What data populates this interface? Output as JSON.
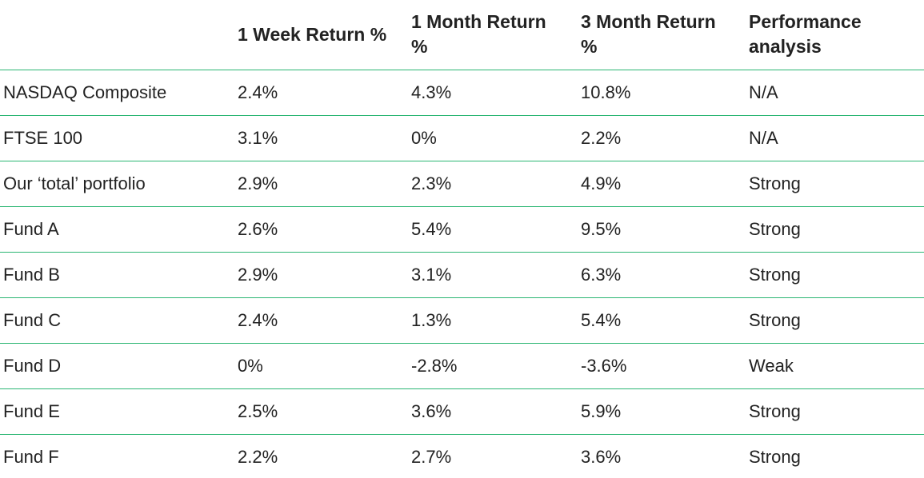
{
  "table": {
    "headers": [
      "",
      "1 Week Return %",
      "1 Month Return %",
      "3 Month Return %",
      "Performance analysis"
    ],
    "rows": [
      [
        "NASDAQ Composite",
        "2.4%",
        "4.3%",
        "10.8%",
        "N/A"
      ],
      [
        "FTSE 100",
        "3.1%",
        "0%",
        "2.2%",
        "N/A"
      ],
      [
        "Our ‘total’ portfolio",
        "2.9%",
        "2.3%",
        "4.9%",
        "Strong"
      ],
      [
        "Fund A",
        "2.6%",
        "5.4%",
        "9.5%",
        "Strong"
      ],
      [
        "Fund B",
        "2.9%",
        "3.1%",
        "6.3%",
        "Strong"
      ],
      [
        "Fund C",
        "2.4%",
        "1.3%",
        "5.4%",
        "Strong"
      ],
      [
        "Fund D",
        "0%",
        "-2.8%",
        "-3.6%",
        "Weak"
      ],
      [
        "Fund E",
        "2.5%",
        "3.6%",
        "5.9%",
        "Strong"
      ],
      [
        "Fund F",
        "2.2%",
        "2.7%",
        "3.6%",
        "Strong"
      ]
    ]
  },
  "colors": {
    "rule": "#2bb673",
    "text": "#222222"
  }
}
